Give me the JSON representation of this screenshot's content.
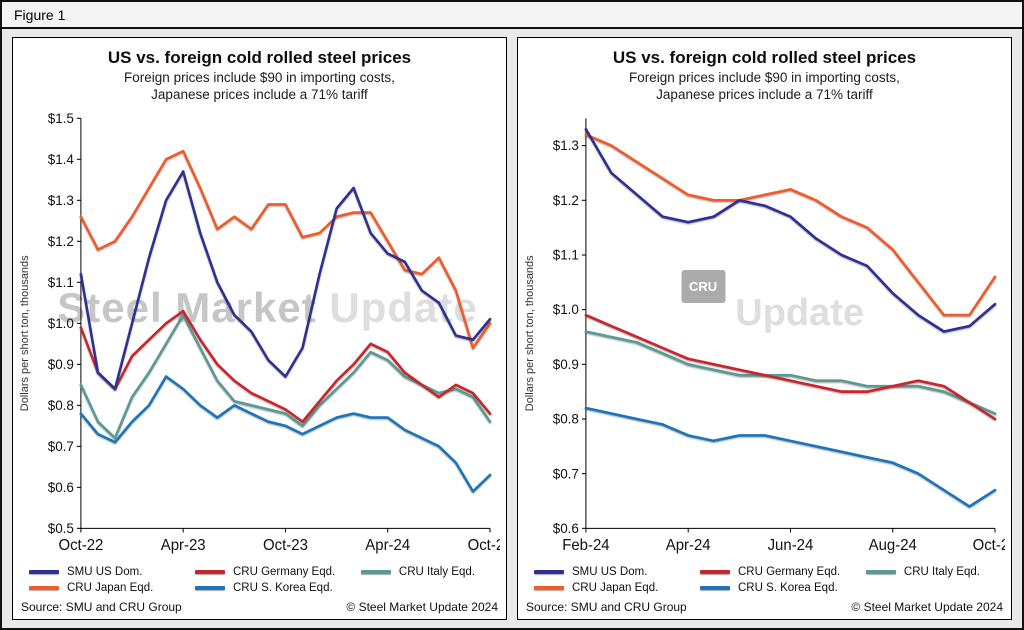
{
  "figure": {
    "label": "Figure 1"
  },
  "footer": {
    "source": "Source: SMU and CRU Group",
    "copyright": "© Steel Market Update 2024"
  },
  "watermark": {
    "left_bold": "Steel Market",
    "left_light": "Update",
    "logo": "CRU",
    "right_text": "Update"
  },
  "chart_data": [
    {
      "type": "line",
      "title": "US vs. foreign cold rolled steel prices",
      "subtitle1": "Foreign prices include $90 in importing costs,",
      "subtitle2": "Japanese prices include a 71% tariff",
      "ylabel": "Dollars per short ton, thousands",
      "ylim": [
        0.5,
        1.5
      ],
      "grid": false,
      "legend_position": "bottom",
      "yticks": [
        0.5,
        0.6,
        0.7,
        0.8,
        0.9,
        1.0,
        1.1,
        1.2,
        1.3,
        1.4,
        1.5
      ],
      "ytick_labels": [
        "$0.5",
        "$0.6",
        "$0.7",
        "$0.8",
        "$0.9",
        "$1.0",
        "$1.1",
        "$1.2",
        "$1.3",
        "$1.4",
        "$1.5"
      ],
      "x_unit": "monthly, Oct-22 through Oct-24",
      "xtick_labels": [
        "Oct-22",
        "Apr-23",
        "Oct-23",
        "Apr-24",
        "Oct-24"
      ],
      "xtick_positions": [
        0,
        6,
        12,
        18,
        24
      ],
      "series": [
        {
          "name": "CRU Japan Eqd.",
          "color": "#f15a29",
          "values": [
            1.26,
            1.18,
            1.2,
            1.26,
            1.33,
            1.4,
            1.42,
            1.33,
            1.23,
            1.26,
            1.23,
            1.29,
            1.29,
            1.21,
            1.22,
            1.26,
            1.27,
            1.27,
            1.2,
            1.13,
            1.12,
            1.16,
            1.08,
            0.94,
            1.0
          ]
        },
        {
          "name": "CRU Italy Eqd.",
          "color": "#5a9a96",
          "values": [
            0.85,
            0.76,
            0.72,
            0.82,
            0.88,
            0.95,
            1.02,
            0.94,
            0.86,
            0.81,
            0.8,
            0.79,
            0.78,
            0.75,
            0.8,
            0.84,
            0.88,
            0.93,
            0.91,
            0.87,
            0.85,
            0.83,
            0.84,
            0.82,
            0.76
          ]
        },
        {
          "name": "CRU Germany Eqd.",
          "color": "#c9262c",
          "values": [
            0.99,
            0.88,
            0.84,
            0.92,
            0.96,
            1.0,
            1.03,
            0.96,
            0.9,
            0.86,
            0.83,
            0.81,
            0.79,
            0.76,
            0.81,
            0.86,
            0.9,
            0.95,
            0.93,
            0.88,
            0.85,
            0.82,
            0.85,
            0.83,
            0.78
          ]
        },
        {
          "name": "CRU S. Korea Eqd.",
          "color": "#1b75bb",
          "values": [
            0.78,
            0.73,
            0.71,
            0.76,
            0.8,
            0.87,
            0.84,
            0.8,
            0.77,
            0.8,
            0.78,
            0.76,
            0.75,
            0.73,
            0.75,
            0.77,
            0.78,
            0.77,
            0.77,
            0.74,
            0.72,
            0.7,
            0.66,
            0.59,
            0.63
          ]
        },
        {
          "name": "SMU US Dom.",
          "color": "#2e3192",
          "values": [
            1.12,
            0.88,
            0.84,
            1.0,
            1.16,
            1.3,
            1.37,
            1.22,
            1.1,
            1.02,
            0.98,
            0.91,
            0.87,
            0.94,
            1.12,
            1.28,
            1.33,
            1.22,
            1.17,
            1.15,
            1.08,
            1.05,
            0.97,
            0.96,
            1.01
          ]
        }
      ],
      "legend_rows": [
        [
          "SMU US Dom.",
          "CRU Germany Eqd.",
          "CRU Italy Eqd."
        ],
        [
          "CRU Japan Eqd.",
          "CRU S. Korea Eqd."
        ]
      ]
    },
    {
      "type": "line",
      "title": "US vs. foreign cold rolled steel prices",
      "subtitle1": "Foreign prices include $90 in importing costs,",
      "subtitle2": "Japanese prices include a 71% tariff",
      "ylabel": "Dollars per short ton, thousands",
      "ylim": [
        0.6,
        1.35
      ],
      "grid": false,
      "legend_position": "bottom",
      "yticks": [
        0.6,
        0.7,
        0.8,
        0.9,
        1.0,
        1.1,
        1.2,
        1.3
      ],
      "ytick_labels": [
        "$0.6",
        "$0.7",
        "$0.8",
        "$0.9",
        "$1.0",
        "$1.1",
        "$1.2",
        "$1.3"
      ],
      "x_unit": "semi-monthly, Feb-24 through Oct-24",
      "xtick_labels": [
        "Feb-24",
        "Apr-24",
        "Jun-24",
        "Aug-24",
        "Oct-24"
      ],
      "xtick_positions": [
        0,
        4,
        8,
        12,
        16
      ],
      "series": [
        {
          "name": "CRU Japan Eqd.",
          "color": "#f15a29",
          "values": [
            1.32,
            1.3,
            1.27,
            1.24,
            1.21,
            1.2,
            1.2,
            1.21,
            1.22,
            1.2,
            1.17,
            1.15,
            1.11,
            1.05,
            0.99,
            0.99,
            1.06
          ]
        },
        {
          "name": "CRU Italy Eqd.",
          "color": "#5a9a96",
          "values": [
            0.96,
            0.95,
            0.94,
            0.92,
            0.9,
            0.89,
            0.88,
            0.88,
            0.88,
            0.87,
            0.87,
            0.86,
            0.86,
            0.86,
            0.85,
            0.83,
            0.81
          ]
        },
        {
          "name": "CRU Germany Eqd.",
          "color": "#c9262c",
          "values": [
            0.99,
            0.97,
            0.95,
            0.93,
            0.91,
            0.9,
            0.89,
            0.88,
            0.87,
            0.86,
            0.85,
            0.85,
            0.86,
            0.87,
            0.86,
            0.83,
            0.8
          ]
        },
        {
          "name": "CRU S. Korea Eqd.",
          "color": "#1b75bb",
          "values": [
            0.82,
            0.81,
            0.8,
            0.79,
            0.77,
            0.76,
            0.77,
            0.77,
            0.76,
            0.75,
            0.74,
            0.73,
            0.72,
            0.7,
            0.67,
            0.64,
            0.67
          ]
        },
        {
          "name": "SMU US Dom.",
          "color": "#2e3192",
          "values": [
            1.33,
            1.25,
            1.21,
            1.17,
            1.16,
            1.17,
            1.2,
            1.19,
            1.17,
            1.13,
            1.1,
            1.08,
            1.03,
            0.99,
            0.96,
            0.97,
            1.01
          ]
        }
      ],
      "legend_rows": [
        [
          "SMU US Dom.",
          "CRU Germany Eqd.",
          "CRU Italy Eqd."
        ],
        [
          "CRU Japan Eqd.",
          "CRU S. Korea Eqd."
        ]
      ]
    }
  ]
}
